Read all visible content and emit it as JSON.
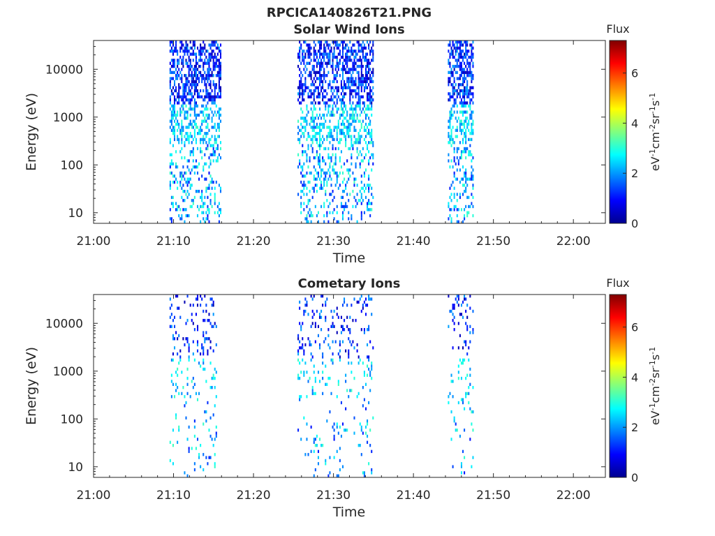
{
  "figure_title": "RPCICA140826T21.PNG",
  "colorscale": {
    "stops": [
      "#00008f",
      "#0000ff",
      "#00ffff",
      "#ffff00",
      "#ff0000",
      "#800000"
    ],
    "range": [
      0,
      7.3
    ]
  },
  "chart_data": [
    {
      "type": "heatmap",
      "title": "Solar Wind Ions",
      "xlabel": "Time",
      "ylabel": "Energy (eV)",
      "x_ticks": [
        "21:00",
        "21:10",
        "21:20",
        "21:30",
        "21:40",
        "21:50",
        "22:00"
      ],
      "x_range_min": [
        0,
        64
      ],
      "y_ticks": [
        "10",
        "100",
        "1000",
        "10000"
      ],
      "y_log_range": [
        6,
        40000
      ],
      "colorbar": {
        "label": "Flux",
        "units": "eV-1cm-2sr-1s-1",
        "ticks": [
          "0",
          "2",
          "4",
          "6"
        ],
        "range": [
          0,
          7.3
        ]
      },
      "bursts": [
        {
          "start_min": 9.5,
          "end_min": 15.8,
          "density": 0.55,
          "seed": 11
        },
        {
          "start_min": 25.5,
          "end_min": 35.0,
          "density": 0.5,
          "seed": 23
        },
        {
          "start_min": 44.3,
          "end_min": 47.5,
          "density": 0.55,
          "seed": 37
        }
      ]
    },
    {
      "type": "heatmap",
      "title": "Cometary Ions",
      "xlabel": "Time",
      "ylabel": "Energy (eV)",
      "x_ticks": [
        "21:00",
        "21:10",
        "21:20",
        "21:30",
        "21:40",
        "21:50",
        "22:00"
      ],
      "x_range_min": [
        0,
        64
      ],
      "y_ticks": [
        "10",
        "100",
        "1000",
        "10000"
      ],
      "y_log_range": [
        6,
        40000
      ],
      "colorbar": {
        "label": "Flux",
        "units": "eV-1cm-2sr-1s-1",
        "ticks": [
          "0",
          "2",
          "4",
          "6"
        ],
        "range": [
          0,
          7.3
        ]
      },
      "bursts": [
        {
          "start_min": 9.5,
          "end_min": 15.3,
          "density": 0.15,
          "seed": 53
        },
        {
          "start_min": 25.5,
          "end_min": 35.0,
          "density": 0.13,
          "seed": 71
        },
        {
          "start_min": 44.3,
          "end_min": 47.5,
          "density": 0.15,
          "seed": 89
        }
      ]
    }
  ]
}
